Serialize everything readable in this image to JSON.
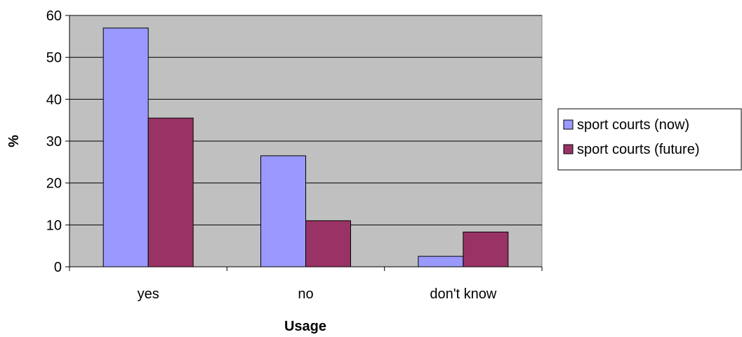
{
  "chart_data": {
    "type": "bar",
    "categories": [
      "yes",
      "no",
      "don't know"
    ],
    "series": [
      {
        "name": "sport courts (now)",
        "values": [
          57,
          26.5,
          2.5
        ],
        "color": "#9999ff"
      },
      {
        "name": "sport courts (future)",
        "values": [
          35.5,
          11,
          8.3
        ],
        "color": "#993366"
      }
    ],
    "title": "",
    "xlabel": "Usage",
    "ylabel": "%",
    "ylim": [
      0,
      60
    ],
    "yticks": [
      0,
      10,
      20,
      30,
      40,
      50,
      60
    ],
    "grid": true,
    "plot_background": "#c0c0c0",
    "legend_position": "right"
  }
}
